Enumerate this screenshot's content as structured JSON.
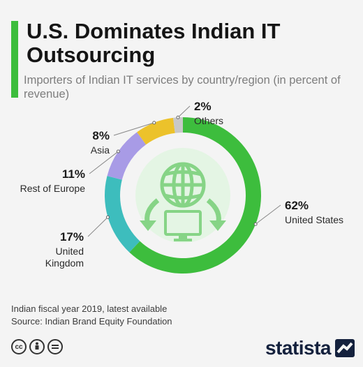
{
  "header": {
    "title": "U.S. Dominates Indian IT Outsourcing",
    "subtitle": "Importers of Indian IT services by country/region (in percent of revenue)"
  },
  "footer": {
    "note": "Indian fiscal year 2019, latest available",
    "source": "Source: Indian Brand Equity Foundation",
    "brand": "statista",
    "license_icons": [
      "cc",
      "by",
      "nd"
    ]
  },
  "colors": {
    "accent": "#3dbd3d",
    "united_states": "#3dbd3d",
    "united_kingdom": "#3dbdbd",
    "rest_of_europe": "#a89be6",
    "asia": "#ecc22b",
    "others": "#c8c8c8"
  },
  "chart_data": {
    "type": "pie",
    "donut": true,
    "center_icon": "globe-laptop-icon",
    "slices": [
      {
        "name": "United States",
        "value": 62,
        "label": "62%"
      },
      {
        "name": "United Kingdom",
        "value": 17,
        "label": "17%"
      },
      {
        "name": "Rest of Europe",
        "value": 11,
        "label": "11%"
      },
      {
        "name": "Asia",
        "value": 8,
        "label": "8%"
      },
      {
        "name": "Others",
        "value": 2,
        "label": "2%"
      }
    ]
  }
}
